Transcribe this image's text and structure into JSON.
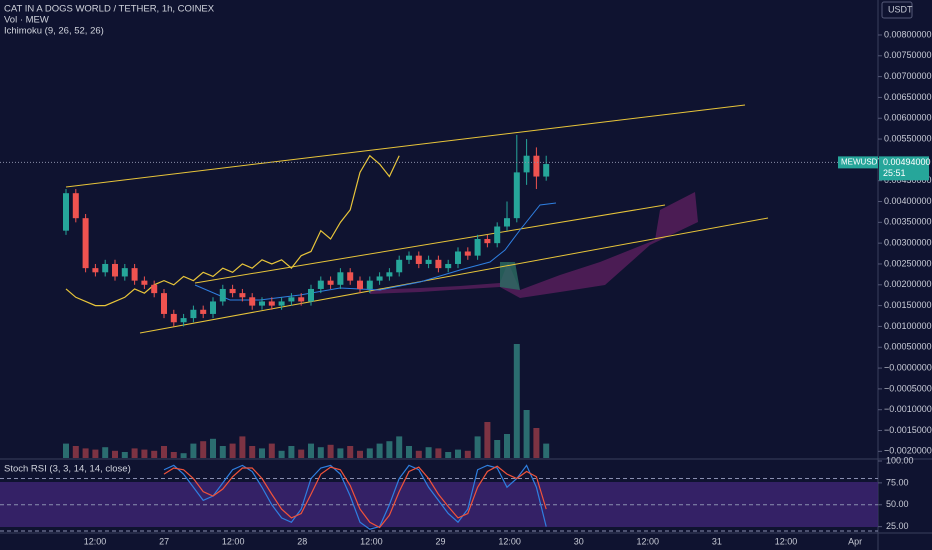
{
  "chart_data": {
    "type": "candlestick",
    "title": "CAT IN A DOGS WORLD / TETHER, 1h, COINEX",
    "volume_label": "Vol · MEW",
    "indicator_label": "Ichimoku (9, 26, 52, 26)",
    "currency": "USDT",
    "symbol_label": "MEWUSDT",
    "last_price": {
      "value": 0.00494,
      "label": "0.00494000"
    },
    "countdown": "25:51",
    "colors": {
      "up": "#26a69a",
      "down": "#ef5350",
      "volume_up": "#2b6d70",
      "volume_down": "#7d3343",
      "compare": "#e8c53a",
      "k": "#2f7fe0",
      "d": "#f0533a"
    },
    "ylim": [
      -0.00216,
      0.00884
    ],
    "yticks": [
      {
        "value": 0.008,
        "label": "0.00800000"
      },
      {
        "value": 0.0075,
        "label": "0.00750000"
      },
      {
        "value": 0.007,
        "label": "0.00700000"
      },
      {
        "value": 0.0065,
        "label": "0.00650000"
      },
      {
        "value": 0.006,
        "label": "0.00600000"
      },
      {
        "value": 0.0055,
        "label": "0.00550000"
      },
      {
        "value": 0.0045,
        "label": "0.00450000"
      },
      {
        "value": 0.004,
        "label": "0.00400000"
      },
      {
        "value": 0.0035,
        "label": "0.00350000"
      },
      {
        "value": 0.003,
        "label": "0.00300000"
      },
      {
        "value": 0.0025,
        "label": "0.00250000"
      },
      {
        "value": 0.002,
        "label": "0.00200000"
      },
      {
        "value": 0.0015,
        "label": "0.00150000"
      },
      {
        "value": 0.001,
        "label": "0.00100000"
      },
      {
        "value": 0.0005,
        "label": "0.00050000"
      },
      {
        "value": 0,
        "label": "−0.00000000"
      },
      {
        "value": -0.0005,
        "label": "−0.00050000"
      },
      {
        "value": -0.001,
        "label": "−0.00100000"
      },
      {
        "value": -0.0015,
        "label": "−0.00150000"
      },
      {
        "value": -0.002,
        "label": "−0.00200000"
      }
    ],
    "time_labels": [
      "12:00",
      "27",
      "12:00",
      "28",
      "12:00",
      "29",
      "12:00",
      "30",
      "12:00",
      "31",
      "12:00",
      "Apr"
    ],
    "open": [
      0.0033,
      0.0042,
      0.0036,
      0.0024,
      0.0023,
      0.0025,
      0.0022,
      0.0024,
      0.0021,
      0.002,
      0.0018,
      0.0013,
      0.0011,
      0.0012,
      0.0014,
      0.0013,
      0.0016,
      0.0019,
      0.0018,
      0.0017,
      0.0015,
      0.0016,
      0.0015,
      0.0016,
      0.0017,
      0.0016,
      0.0019,
      0.0021,
      0.002,
      0.0023,
      0.0021,
      0.0019,
      0.0021,
      0.0022,
      0.0023,
      0.0026,
      0.0027,
      0.0025,
      0.0026,
      0.0024,
      0.0025,
      0.0028,
      0.0027,
      0.0031,
      0.003,
      0.0034,
      0.0036,
      0.0047,
      0.0051,
      0.0046
    ],
    "high": [
      0.0043,
      0.0043,
      0.0037,
      0.0025,
      0.0026,
      0.0026,
      0.0025,
      0.0025,
      0.0022,
      0.0021,
      0.0019,
      0.0014,
      0.0013,
      0.0015,
      0.0015,
      0.0017,
      0.002,
      0.002,
      0.0019,
      0.0018,
      0.0017,
      0.0017,
      0.0017,
      0.0018,
      0.0018,
      0.002,
      0.0022,
      0.0022,
      0.0024,
      0.0024,
      0.0022,
      0.0022,
      0.0023,
      0.0024,
      0.0027,
      0.0028,
      0.0028,
      0.0027,
      0.0027,
      0.0026,
      0.0029,
      0.0029,
      0.0032,
      0.0032,
      0.0035,
      0.004,
      0.0056,
      0.0055,
      0.0053,
      0.0051
    ],
    "low": [
      0.0032,
      0.0035,
      0.0023,
      0.0022,
      0.0022,
      0.0021,
      0.0021,
      0.002,
      0.0019,
      0.0017,
      0.0012,
      0.001,
      0.001,
      0.0011,
      0.0012,
      0.0012,
      0.0015,
      0.0017,
      0.0016,
      0.0014,
      0.0014,
      0.0014,
      0.0014,
      0.0015,
      0.0015,
      0.0015,
      0.0018,
      0.0019,
      0.0019,
      0.002,
      0.0018,
      0.0018,
      0.002,
      0.0021,
      0.0022,
      0.0025,
      0.0024,
      0.0024,
      0.0023,
      0.0023,
      0.0024,
      0.0026,
      0.0026,
      0.0029,
      0.0029,
      0.0033,
      0.0035,
      0.0044,
      0.0043,
      0.0045
    ],
    "close": [
      0.0042,
      0.0036,
      0.0024,
      0.0023,
      0.0025,
      0.0022,
      0.0024,
      0.0021,
      0.002,
      0.0018,
      0.0013,
      0.0011,
      0.0012,
      0.0014,
      0.0013,
      0.0016,
      0.0019,
      0.0018,
      0.0017,
      0.0015,
      0.0016,
      0.0015,
      0.0016,
      0.0017,
      0.0016,
      0.0019,
      0.0021,
      0.002,
      0.0023,
      0.0021,
      0.0019,
      0.0021,
      0.0022,
      0.0023,
      0.0026,
      0.0027,
      0.0025,
      0.0026,
      0.0024,
      0.0025,
      0.0028,
      0.0027,
      0.0031,
      0.003,
      0.0034,
      0.0036,
      0.0047,
      0.0051,
      0.0046,
      0.0049
    ],
    "volume": [
      12,
      10,
      8,
      7,
      9,
      6,
      5,
      8,
      7,
      6,
      10,
      5,
      4,
      12,
      14,
      16,
      10,
      12,
      18,
      10,
      8,
      12,
      6,
      10,
      7,
      12,
      9,
      11,
      8,
      10,
      6,
      8,
      12,
      14,
      18,
      10,
      6,
      9,
      8,
      5,
      7,
      6,
      18,
      30,
      15,
      20,
      95,
      40,
      25,
      12
    ],
    "compare": [
      0.0019,
      0.0017,
      0.0016,
      0.0015,
      0.0015,
      0.0016,
      0.0017,
      0.0019,
      0.0018,
      0.002,
      0.0021,
      0.002,
      0.0022,
      0.0021,
      0.0023,
      0.0022,
      0.0024,
      0.0023,
      0.0025,
      0.0024,
      0.0026,
      0.0025,
      0.0026,
      0.0024,
      0.0027,
      0.0028,
      0.0033,
      0.0031,
      0.0035,
      0.0038,
      0.0047,
      0.0051,
      0.0049,
      0.0046,
      0.0051,
      null,
      null,
      null,
      null,
      null,
      null,
      null,
      null,
      null,
      null,
      null,
      null,
      null,
      null,
      null
    ],
    "stoch_label": "Stoch RSI (3, 3, 14, 14, close)",
    "stoch_ylim": [
      20,
      100
    ],
    "stoch_yticks": [
      {
        "value": 100,
        "label": "100.00"
      },
      {
        "value": 75,
        "label": "75.00"
      },
      {
        "value": 50,
        "label": "50.00"
      },
      {
        "value": 25,
        "label": "25.00"
      }
    ],
    "stoch_k": [
      null,
      null,
      null,
      null,
      null,
      null,
      null,
      null,
      null,
      null,
      90,
      95,
      85,
      70,
      55,
      60,
      75,
      90,
      95,
      88,
      70,
      50,
      35,
      30,
      45,
      80,
      92,
      95,
      85,
      60,
      30,
      22,
      25,
      50,
      80,
      95,
      90,
      70,
      55,
      40,
      30,
      45,
      90,
      95,
      92,
      70,
      80,
      95,
      70,
      25
    ],
    "stoch_d": [
      null,
      null,
      null,
      null,
      null,
      null,
      null,
      null,
      null,
      null,
      85,
      92,
      90,
      80,
      65,
      60,
      68,
      82,
      92,
      92,
      80,
      62,
      45,
      35,
      40,
      62,
      85,
      93,
      90,
      72,
      45,
      30,
      24,
      38,
      65,
      88,
      93,
      80,
      62,
      48,
      35,
      40,
      70,
      88,
      94,
      85,
      80,
      88,
      82,
      45
    ]
  }
}
